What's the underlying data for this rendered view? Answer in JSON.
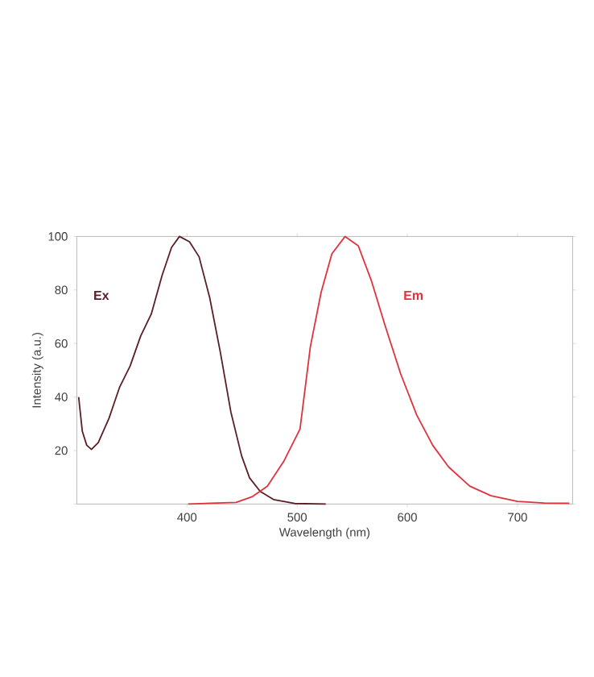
{
  "chart_data": {
    "type": "line",
    "xlabel": "Wavelength (nm)",
    "ylabel": "Intensity (a.u.)",
    "xlim": [
      300,
      750
    ],
    "ylim": [
      0,
      100
    ],
    "xticks": [
      400,
      500,
      600,
      700
    ],
    "yticks": [
      {
        "value": 0,
        "label": null
      },
      20,
      40,
      60,
      80,
      100
    ],
    "grid": false,
    "legend": false,
    "series": [
      {
        "name": "Ex",
        "color": "#5a1e24",
        "x": [
          301.7,
          305,
          309,
          313.3,
          319.5,
          329.2,
          338.7,
          348.4,
          358,
          367.6,
          377.3,
          386,
          393.2,
          402.3,
          411,
          420.7,
          430.3,
          439.9,
          449.6,
          456.8,
          466.5,
          478.6,
          497.7,
          526
        ],
        "values": [
          40,
          27.2,
          22,
          20.4,
          23,
          32,
          43.5,
          51.6,
          62.8,
          71,
          85.3,
          95.9,
          100,
          98,
          92.4,
          77,
          56.7,
          34.3,
          18,
          9.8,
          4.7,
          1.7,
          0.2,
          0
        ]
      },
      {
        "name": "Em",
        "color": "#e0323c",
        "x": [
          401,
          444.6,
          459,
          473,
          487.8,
          502.6,
          512,
          521.8,
          531.5,
          543.5,
          555.5,
          567.6,
          579.6,
          594,
          608.5,
          623,
          637.4,
          656.6,
          676,
          700,
          724,
          747
        ],
        "values": [
          0,
          0.6,
          2.7,
          6.7,
          15.9,
          28,
          58.8,
          79.2,
          93.5,
          100,
          96.5,
          83.2,
          67,
          48.6,
          33.3,
          22,
          13.9,
          6.7,
          3.1,
          1,
          0.4,
          0.3
        ]
      }
    ]
  }
}
